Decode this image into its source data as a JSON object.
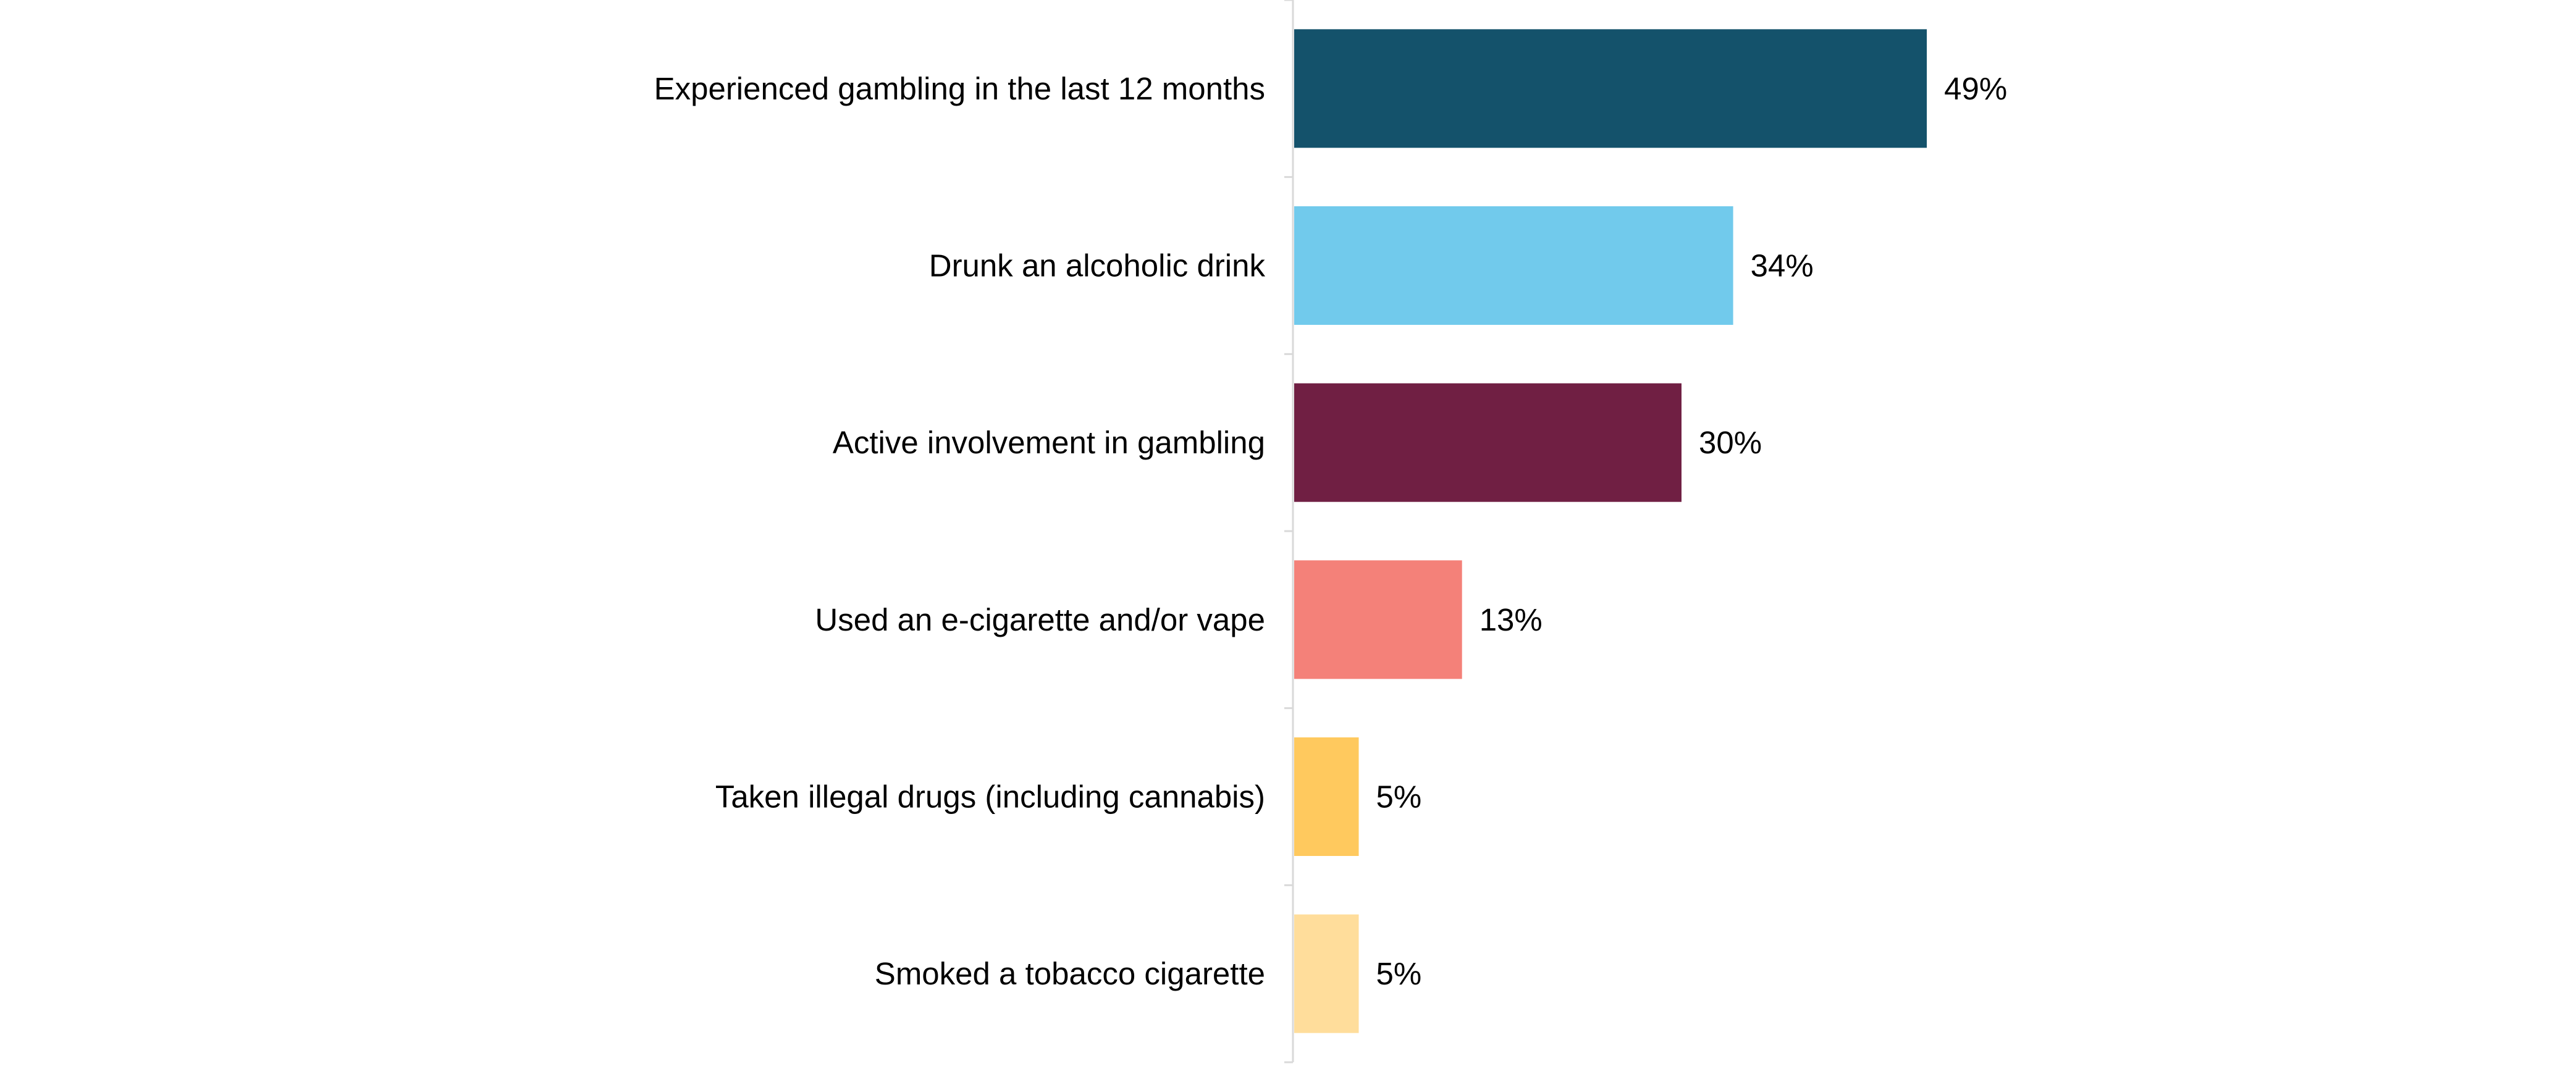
{
  "chart_data": {
    "type": "bar",
    "orientation": "horizontal",
    "title": "",
    "xlabel": "",
    "ylabel": "",
    "xlim": [
      0,
      100
    ],
    "grid": false,
    "legend": "none",
    "value_suffix": "%",
    "categories": [
      "Experienced gambling in the last 12 months",
      "Drunk an alcoholic drink",
      "Active involvement in gambling",
      "Used an e-cigarette and/or vape",
      "Taken illegal drugs (including cannabis)",
      "Smoked a tobacco cigarette"
    ],
    "values": [
      49,
      34,
      30,
      13,
      5,
      5
    ],
    "value_labels": [
      "49%",
      "34%",
      "30%",
      "13%",
      "5%",
      "5%"
    ],
    "colors": [
      "#14526b",
      "#71caec",
      "#701f43",
      "#f48179",
      "#ffc95e",
      "#ffdd9b"
    ],
    "axis_color": "#d9d9d9"
  }
}
